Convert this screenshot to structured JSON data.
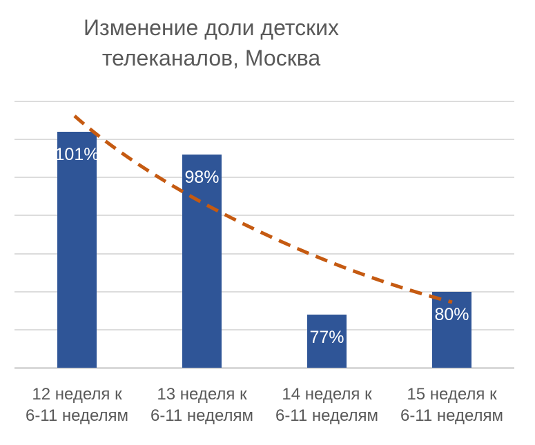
{
  "title": {
    "line1": "Изменение доли детских",
    "line2": "телеканалов, Москва"
  },
  "chart_data": {
    "type": "bar",
    "title": "Изменение доли детских телеканалов, Москва",
    "categories": [
      "12 неделя к 6-11 неделям",
      "13 неделя к 6-11 неделям",
      "14 неделя к 6-11 неделям",
      "15 неделя к 6-11 неделям"
    ],
    "values": [
      101,
      98,
      77,
      80
    ],
    "data_labels": [
      "101%",
      "98%",
      "77%",
      "80%"
    ],
    "unit": "%",
    "ylim": [
      70,
      105
    ],
    "gridline_step": 5,
    "grid": true,
    "legend": "none",
    "y_axis_tick_labels": "none",
    "bar_color": "#2F5597",
    "data_label_color": "#FFFFFF",
    "gridline_color": "#DCDCDC",
    "axis_line_color": "#D9D9D9",
    "title_color": "#595959",
    "x_axis_label_color": "#595959",
    "trendline": {
      "type": "curved",
      "style": "dashed",
      "color": "#C55A11"
    }
  },
  "x_axis": {
    "labels": [
      {
        "line1": "12 неделя к",
        "line2": "6-11 неделям"
      },
      {
        "line1": "13 неделя к",
        "line2": "6-11 неделям"
      },
      {
        "line1": "14 неделя к",
        "line2": "6-11 неделям"
      },
      {
        "line1": "15 неделя к",
        "line2": "6-11 неделям"
      }
    ]
  }
}
